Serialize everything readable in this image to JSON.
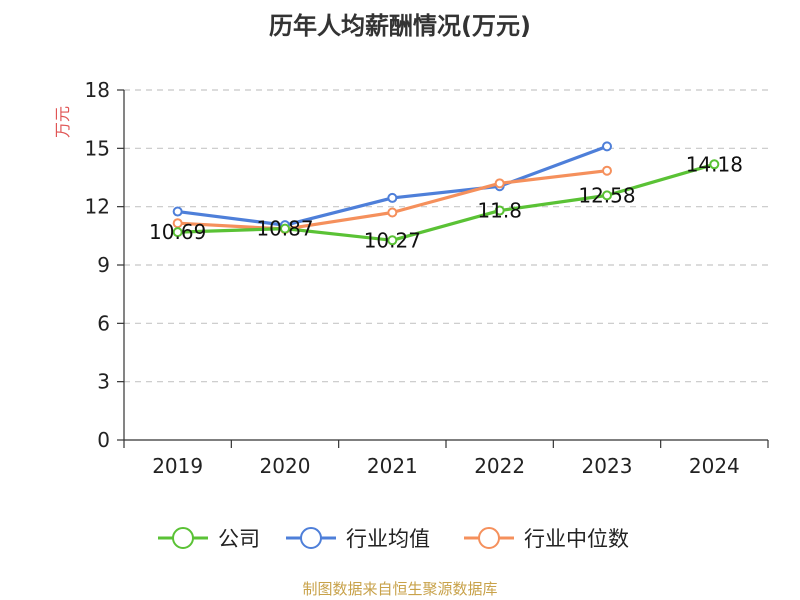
{
  "chart_data": {
    "type": "line",
    "title": "历年人均薪酬情况(万元)",
    "ylabel": "万元",
    "xlabel": "",
    "categories": [
      "2019",
      "2020",
      "2021",
      "2022",
      "2023",
      "2024"
    ],
    "ylim": [
      0,
      18
    ],
    "yticks": [
      0,
      3,
      6,
      9,
      12,
      15,
      18
    ],
    "grid": true,
    "legend_position": "bottom",
    "series": [
      {
        "name": "公司",
        "color": "#5ac235",
        "values": [
          10.69,
          10.87,
          10.27,
          11.8,
          12.58,
          14.18
        ],
        "labels": [
          "10.69",
          "10.87",
          "10.27",
          "11.8",
          "12.58",
          "14.18"
        ]
      },
      {
        "name": "行业均值",
        "color": "#4e7fd9",
        "values": [
          11.75,
          11.05,
          12.45,
          13.05,
          15.1,
          null
        ]
      },
      {
        "name": "行业中位数",
        "color": "#f5905c",
        "values": [
          11.15,
          10.85,
          11.7,
          13.2,
          13.85,
          null
        ]
      }
    ]
  },
  "source_text": "制图数据来自恒生聚源数据库"
}
